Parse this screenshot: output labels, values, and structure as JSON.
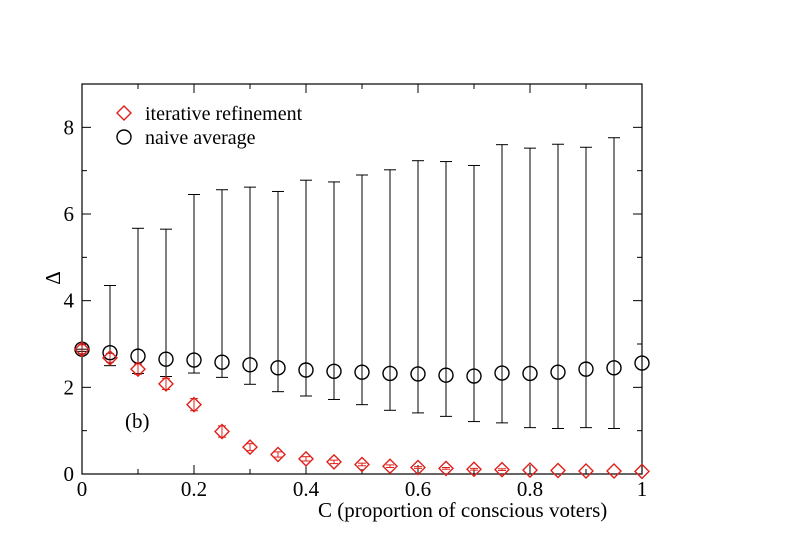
{
  "chart_data": {
    "type": "scatter",
    "title": "",
    "xlabel": "C (proportion of conscious voters)",
    "ylabel": "Δ",
    "xlim": [
      0,
      1
    ],
    "ylim": [
      0,
      9
    ],
    "x_ticks": [
      0,
      0.2,
      0.4,
      0.6,
      0.8,
      1
    ],
    "x_tick_labels": [
      "0",
      "0.2",
      "0.4",
      "0.6",
      "0.8",
      "1"
    ],
    "y_ticks": [
      0,
      2,
      4,
      6,
      8
    ],
    "y_tick_labels": [
      "0",
      "2",
      "4",
      "6",
      "8"
    ],
    "annotation": "(b)",
    "legend_position": "top-left",
    "series": [
      {
        "name": "iterative refinement",
        "marker": "diamond",
        "color": "#e0201b",
        "x": [
          0,
          0.05,
          0.1,
          0.15,
          0.2,
          0.25,
          0.3,
          0.35,
          0.4,
          0.45,
          0.5,
          0.55,
          0.6,
          0.65,
          0.7,
          0.75,
          0.8,
          0.85,
          0.9,
          0.95,
          1
        ],
        "y": [
          2.88,
          2.68,
          2.42,
          2.08,
          1.6,
          0.98,
          0.62,
          0.45,
          0.35,
          0.28,
          0.22,
          0.18,
          0.15,
          0.13,
          0.11,
          0.1,
          0.09,
          0.08,
          0.07,
          0.07,
          0.06
        ],
        "err": [
          0.1,
          0.1,
          0.12,
          0.13,
          0.14,
          0.13,
          0.08,
          0.06,
          0.05,
          0.04,
          0.03,
          0.03,
          0.02,
          0.02,
          0.02,
          0.02,
          0.01,
          0.01,
          0.01,
          0.01,
          0.01
        ]
      },
      {
        "name": "naive average",
        "marker": "circle",
        "color": "#000000",
        "x": [
          0,
          0.05,
          0.1,
          0.15,
          0.2,
          0.25,
          0.3,
          0.35,
          0.4,
          0.45,
          0.5,
          0.55,
          0.6,
          0.65,
          0.7,
          0.75,
          0.8,
          0.85,
          0.9,
          0.95,
          1
        ],
        "y": [
          2.88,
          2.8,
          2.72,
          2.65,
          2.63,
          2.58,
          2.52,
          2.45,
          2.4,
          2.37,
          2.35,
          2.32,
          2.31,
          2.28,
          2.26,
          2.33,
          2.32,
          2.35,
          2.42,
          2.45,
          2.56
        ],
        "err_low": [
          0.05,
          0.3,
          0.4,
          0.4,
          0.3,
          0.35,
          0.45,
          0.55,
          0.6,
          0.65,
          0.75,
          0.85,
          0.9,
          0.95,
          1.05,
          1.15,
          1.25,
          1.3,
          1.35,
          1.4,
          0
        ],
        "err_high": [
          0,
          1.55,
          2.95,
          3.0,
          3.82,
          3.98,
          4.1,
          4.07,
          4.38,
          4.37,
          4.55,
          4.7,
          4.92,
          4.93,
          4.86,
          5.27,
          5.2,
          5.26,
          5.12,
          5.31,
          0
        ]
      }
    ]
  }
}
